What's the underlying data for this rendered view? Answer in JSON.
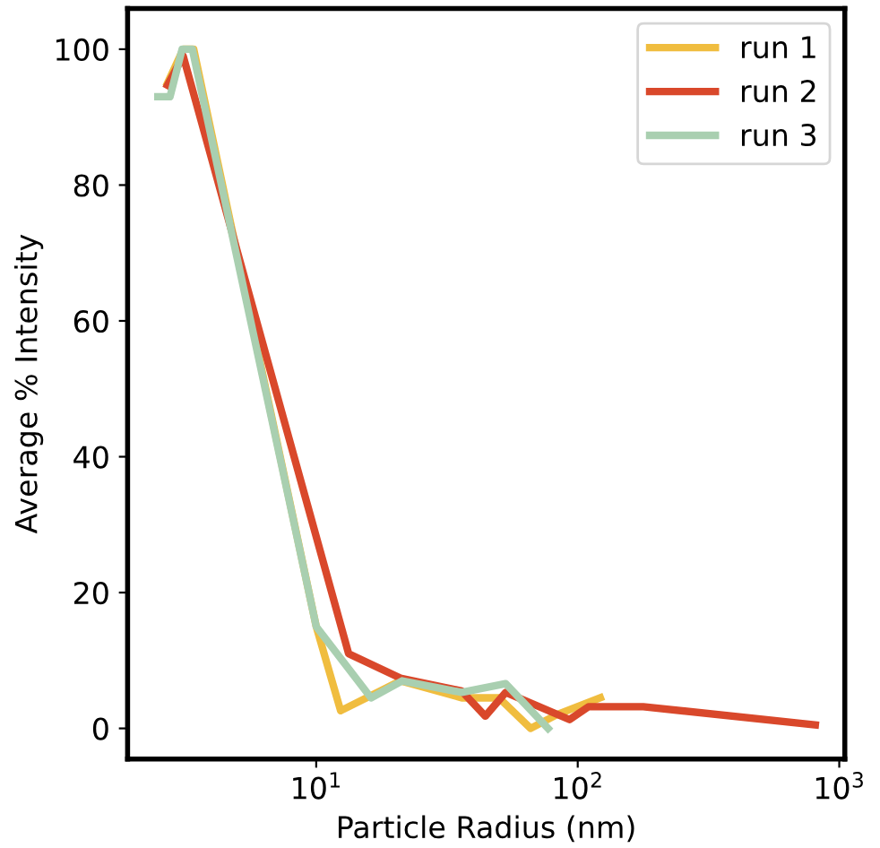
{
  "chart_data": {
    "type": "line",
    "xlabel": "Particle Radius (nm)",
    "ylabel": "Average % Intensity",
    "log": "x",
    "xlim": [
      1.9,
      1050
    ],
    "ylim": [
      -4.5,
      106
    ],
    "xticks": [
      {
        "value": 10,
        "label": "10$^{1}$"
      },
      {
        "value": 100,
        "label": "10$^{2}$"
      },
      {
        "value": 1000,
        "label": "10$^{3}$"
      }
    ],
    "yticks": [
      0,
      20,
      40,
      60,
      80,
      100
    ],
    "grid": false,
    "legend": "top right",
    "line_style": "solid",
    "marker": "none",
    "series": [
      {
        "name": "run 1",
        "color": "#f0bd3f",
        "x": [
          2.7,
          3.1,
          3.4,
          10,
          12.4,
          21,
          36,
          50,
          66,
          83,
          122
        ],
        "values": [
          95,
          100,
          100,
          15,
          2.6,
          7,
          4.5,
          4.5,
          0,
          2,
          4.5
        ]
      },
      {
        "name": "run 2",
        "color": "#d9482b",
        "x": [
          2.7,
          3.1,
          13.3,
          21,
          36,
          44.3,
          53,
          93,
          110,
          178,
          810
        ],
        "values": [
          94.7,
          99,
          11,
          7.4,
          5.5,
          1.8,
          5.3,
          1.3,
          3.2,
          3.2,
          0.5
        ]
      },
      {
        "name": "run 3",
        "color": "#a9cfb0",
        "x": [
          2.48,
          2.76,
          3.07,
          3.36,
          10,
          16.2,
          21.3,
          36,
          53,
          77
        ],
        "values": [
          93,
          93,
          100,
          100,
          15,
          4.5,
          7,
          5.3,
          6.6,
          0
        ]
      }
    ]
  }
}
